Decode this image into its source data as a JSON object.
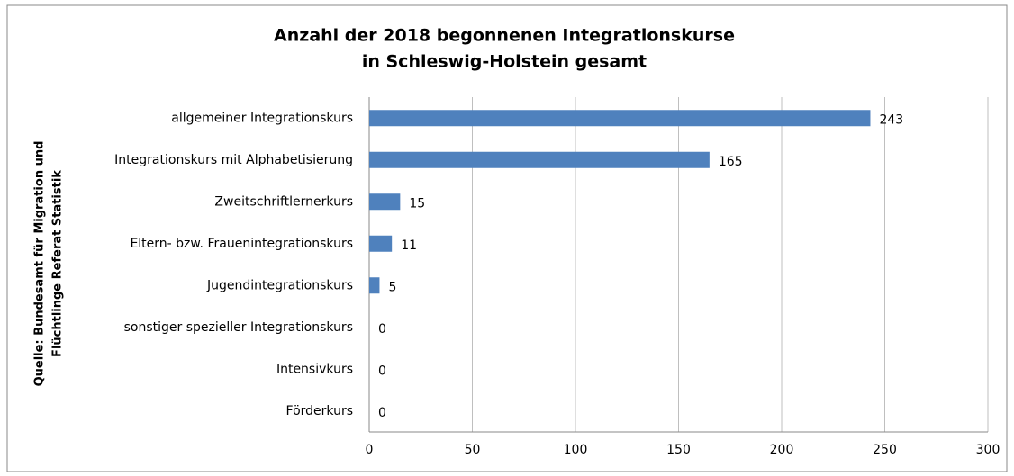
{
  "chart_data": {
    "type": "bar",
    "orientation": "horizontal",
    "title": [
      "Anzahl der 2018 begonnenen Integrationskurse",
      "in Schleswig-Holstein gesamt"
    ],
    "y_label": [
      "Quelle:  Bundesamt für Migration und",
      "Flüchtlinge Referat Statistik"
    ],
    "categories": [
      "allgemeiner Integrationskurs",
      "Integrationskurs mit Alphabetisierung",
      "Zweitschriftlernerkurs",
      "Eltern- bzw. Frauenintegrationskurs",
      "Jugendintegrationskurs",
      "sonstiger spezieller Integrationskurs",
      "Intensivkurs",
      "Förderkurs"
    ],
    "values": [
      243,
      165,
      15,
      11,
      5,
      0,
      0,
      0
    ],
    "color": "#4f81bd",
    "xlim": [
      0,
      300
    ],
    "xticks": [
      0,
      50,
      100,
      150,
      200,
      250,
      300
    ],
    "grid": true
  }
}
